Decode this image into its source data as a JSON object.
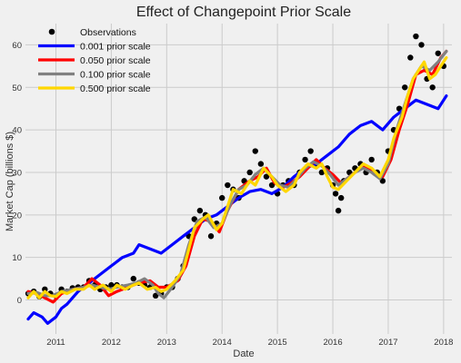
{
  "chart_data": {
    "type": "line",
    "title": "Effect of Changepoint Prior Scale",
    "xlabel": "Date",
    "ylabel": "Market Cap (billions $)",
    "xlim": [
      2010.45,
      2018.15
    ],
    "ylim": [
      -8,
      65
    ],
    "x_ticks": [
      2011,
      2012,
      2013,
      2014,
      2015,
      2016,
      2017,
      2018
    ],
    "x_tick_labels": [
      "2011",
      "2012",
      "2013",
      "2014",
      "2015",
      "2016",
      "2017",
      "2018"
    ],
    "y_ticks": [
      0,
      10,
      20,
      30,
      40,
      50,
      60
    ],
    "y_tick_labels": [
      "0",
      "10",
      "20",
      "30",
      "40",
      "50",
      "60"
    ],
    "grid": true,
    "legend_position": "top-left",
    "legend": [
      "Observations",
      "0.001 prior scale",
      "0.050 prior scale",
      "0.100 prior scale",
      "0.500 prior scale"
    ],
    "observations": {
      "name": "Observations",
      "color": "#000000",
      "x": [
        2010.5,
        2010.6,
        2010.7,
        2010.8,
        2010.9,
        2011.0,
        2011.1,
        2011.2,
        2011.3,
        2011.4,
        2011.5,
        2011.6,
        2011.7,
        2011.8,
        2011.9,
        2012.0,
        2012.1,
        2012.2,
        2012.3,
        2012.4,
        2012.5,
        2012.6,
        2012.7,
        2012.8,
        2012.9,
        2013.0,
        2013.1,
        2013.2,
        2013.3,
        2013.4,
        2013.5,
        2013.6,
        2013.7,
        2013.8,
        2013.9,
        2014.0,
        2014.1,
        2014.2,
        2014.3,
        2014.4,
        2014.5,
        2014.6,
        2014.7,
        2014.8,
        2014.9,
        2015.0,
        2015.1,
        2015.2,
        2015.3,
        2015.4,
        2015.5,
        2015.6,
        2015.7,
        2015.8,
        2015.9,
        2016.0,
        2016.05,
        2016.1,
        2016.15,
        2016.2,
        2016.3,
        2016.4,
        2016.5,
        2016.6,
        2016.7,
        2016.8,
        2016.9,
        2017.0,
        2017.1,
        2017.2,
        2017.3,
        2017.4,
        2017.5,
        2017.6,
        2017.7,
        2017.8,
        2017.9,
        2018.0
      ],
      "y": [
        1.5,
        2,
        0.8,
        2.5,
        1.5,
        1,
        2.5,
        2,
        2.8,
        3,
        3,
        4.5,
        3.5,
        2.5,
        3,
        3.5,
        3.5,
        3,
        3,
        5,
        4,
        3.5,
        3,
        1,
        1.5,
        3,
        3,
        5,
        8,
        15,
        19,
        21,
        20,
        15,
        18,
        24,
        27,
        26,
        24,
        28,
        30,
        35,
        32,
        29,
        27,
        25,
        27,
        28,
        27,
        30,
        33,
        35,
        32,
        30,
        31,
        27,
        25,
        21,
        24,
        28,
        30,
        31,
        32,
        30,
        33,
        30,
        28,
        35,
        40,
        45,
        50,
        57,
        62,
        60,
        52,
        50,
        58,
        55
      ]
    },
    "series": [
      {
        "name": "0.001 prior scale",
        "color": "#0000ff",
        "x": [
          2010.5,
          2010.6,
          2010.75,
          2010.85,
          2011.0,
          2011.1,
          2011.2,
          2011.4,
          2011.6,
          2011.8,
          2012.0,
          2012.2,
          2012.4,
          2012.5,
          2012.7,
          2012.9,
          2013.1,
          2013.3,
          2013.5,
          2013.7,
          2013.9,
          2014.1,
          2014.3,
          2014.5,
          2014.7,
          2014.9,
          2015.1,
          2015.3,
          2015.5,
          2015.7,
          2015.9,
          2016.1,
          2016.3,
          2016.5,
          2016.7,
          2016.9,
          2017.1,
          2017.3,
          2017.5,
          2017.7,
          2017.9,
          2018.05
        ],
        "y": [
          -4.5,
          -3,
          -4,
          -5.5,
          -4,
          -2,
          -1,
          2,
          4,
          6,
          8,
          10,
          11,
          13,
          12,
          11,
          13,
          15,
          17,
          19,
          20,
          22,
          24,
          25.5,
          26,
          25,
          26.5,
          29,
          31,
          32,
          34,
          36,
          39,
          41,
          42,
          40,
          43,
          45,
          47,
          46,
          45,
          48
        ]
      },
      {
        "name": "0.050 prior scale",
        "color": "#ff0000",
        "x": [
          2010.5,
          2010.65,
          2010.8,
          2010.95,
          2011.1,
          2011.3,
          2011.5,
          2011.65,
          2011.8,
          2011.95,
          2012.1,
          2012.3,
          2012.5,
          2012.7,
          2012.85,
          2013.0,
          2013.2,
          2013.35,
          2013.5,
          2013.65,
          2013.8,
          2013.95,
          2014.1,
          2014.3,
          2014.5,
          2014.65,
          2014.8,
          2014.95,
          2015.1,
          2015.25,
          2015.4,
          2015.55,
          2015.7,
          2015.85,
          2016.0,
          2016.15,
          2016.3,
          2016.45,
          2016.6,
          2016.75,
          2016.9,
          2017.05,
          2017.2,
          2017.35,
          2017.5,
          2017.65,
          2017.8,
          2017.95,
          2018.05
        ],
        "y": [
          2,
          1.5,
          0.5,
          -0.5,
          1.5,
          2.5,
          3,
          5,
          3.5,
          1,
          2,
          3,
          4,
          4.5,
          3,
          3,
          4.5,
          8,
          15,
          19,
          18.5,
          16,
          21,
          26,
          28,
          29,
          31,
          27.5,
          26.5,
          27.5,
          29,
          31,
          33,
          31,
          29.5,
          27.5,
          29,
          30.5,
          31.5,
          29.5,
          29,
          33,
          40,
          46,
          53,
          54,
          53,
          57,
          58.5
        ]
      },
      {
        "name": "0.100 prior scale",
        "color": "#808080",
        "x": [
          2010.5,
          2010.65,
          2010.8,
          2010.95,
          2011.1,
          2011.3,
          2011.5,
          2011.65,
          2011.8,
          2011.95,
          2012.1,
          2012.3,
          2012.45,
          2012.6,
          2012.75,
          2012.85,
          2012.95,
          2013.1,
          2013.25,
          2013.4,
          2013.55,
          2013.7,
          2013.85,
          2014.0,
          2014.15,
          2014.3,
          2014.45,
          2014.6,
          2014.75,
          2014.9,
          2015.05,
          2015.2,
          2015.35,
          2015.5,
          2015.65,
          2015.8,
          2015.95,
          2016.1,
          2016.25,
          2016.4,
          2016.55,
          2016.7,
          2016.85,
          2017.0,
          2017.15,
          2017.3,
          2017.45,
          2017.6,
          2017.75,
          2017.9,
          2018.05
        ],
        "y": [
          1.5,
          1.8,
          1,
          1,
          2,
          2.5,
          3,
          3.5,
          3,
          2.5,
          3,
          3.5,
          4,
          5,
          3.5,
          1.5,
          0.5,
          3,
          6,
          13,
          18.5,
          19.5,
          17,
          18,
          22.5,
          26,
          27,
          29.5,
          31,
          29,
          27,
          26.5,
          28.5,
          31,
          32.5,
          31.5,
          29.5,
          27,
          28.5,
          30,
          31,
          30,
          28.5,
          32,
          40,
          46,
          52,
          55,
          54,
          56,
          58.5
        ]
      },
      {
        "name": "0.500 prior scale",
        "color": "#ffd700",
        "x": [
          2010.5,
          2010.6,
          2010.7,
          2010.8,
          2010.9,
          2011.0,
          2011.1,
          2011.2,
          2011.35,
          2011.5,
          2011.6,
          2011.7,
          2011.85,
          2012.0,
          2012.1,
          2012.25,
          2012.4,
          2012.5,
          2012.65,
          2012.8,
          2012.9,
          2013.0,
          2013.15,
          2013.3,
          2013.4,
          2013.5,
          2013.65,
          2013.75,
          2013.9,
          2014.0,
          2014.1,
          2014.2,
          2014.35,
          2014.5,
          2014.6,
          2014.75,
          2014.9,
          2015.0,
          2015.15,
          2015.3,
          2015.4,
          2015.55,
          2015.7,
          2015.8,
          2015.9,
          2016.0,
          2016.1,
          2016.25,
          2016.4,
          2016.55,
          2016.7,
          2016.85,
          2017.0,
          2017.1,
          2017.25,
          2017.35,
          2017.45,
          2017.55,
          2017.65,
          2017.75,
          2017.85,
          2017.95,
          2018.05
        ],
        "y": [
          0.5,
          2,
          0.5,
          2,
          1,
          0.8,
          2,
          1.5,
          2.5,
          2.5,
          3.5,
          2.5,
          3.5,
          2,
          3.5,
          2.5,
          3.5,
          4,
          2.5,
          3,
          2,
          2.5,
          4.5,
          7,
          12,
          17,
          19,
          20,
          16.5,
          18,
          22,
          26,
          25,
          28,
          27,
          31,
          29,
          27,
          25.5,
          27,
          30,
          32,
          31,
          32,
          29,
          26.5,
          26,
          28,
          30,
          32,
          31,
          29,
          33,
          38,
          43,
          48,
          52,
          54,
          56,
          52,
          53,
          55,
          57
        ]
      }
    ]
  }
}
